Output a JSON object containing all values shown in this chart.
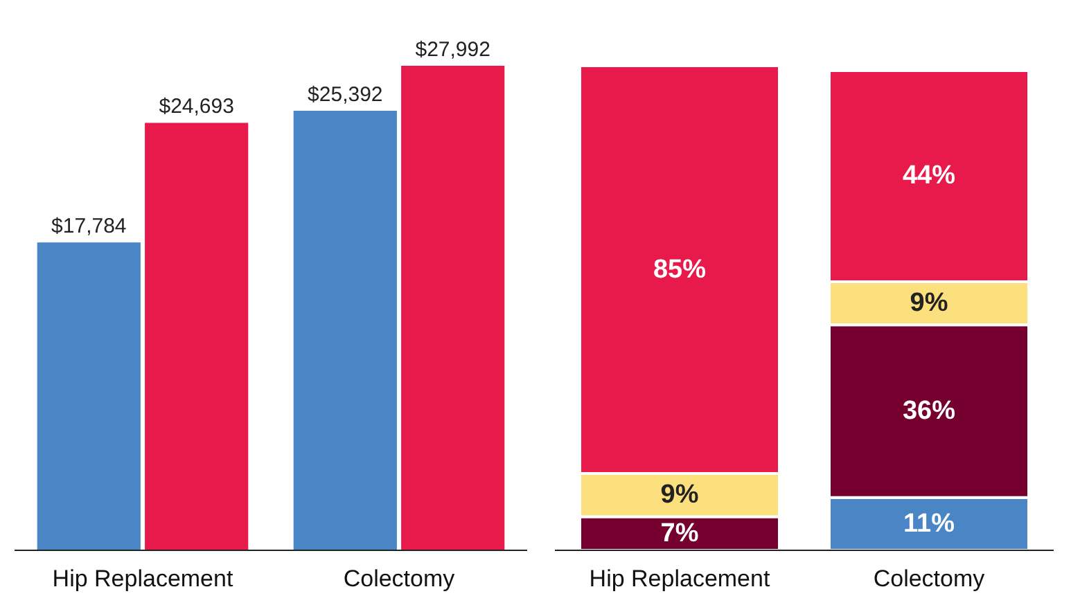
{
  "chart_data": [
    {
      "type": "bar",
      "categories": [
        "Hip Replacement",
        "Colectomy"
      ],
      "series": [
        {
          "color": "#4a86c5",
          "values": [
            17784,
            25392
          ],
          "value_labels": [
            "$17,784",
            "$25,392"
          ]
        },
        {
          "color": "#e8194b",
          "values": [
            24693,
            27992
          ],
          "value_labels": [
            "$24,693",
            "$27,992"
          ]
        }
      ]
    },
    {
      "type": "bar",
      "stacked": true,
      "categories": [
        "Hip Replacement",
        "Colectomy"
      ],
      "series": [
        {
          "color": "#4a86c5",
          "values": [
            null,
            11
          ],
          "value_labels": [
            null,
            "11%"
          ]
        },
        {
          "color": "#75002f",
          "values": [
            7,
            36
          ],
          "value_labels": [
            "7%",
            "36%"
          ]
        },
        {
          "color": "#fde07e",
          "values": [
            9,
            9
          ],
          "value_labels": [
            "9%",
            "9%"
          ]
        },
        {
          "color": "#e8194b",
          "values": [
            85,
            44
          ],
          "value_labels": [
            "85%",
            "44%"
          ]
        }
      ]
    }
  ]
}
